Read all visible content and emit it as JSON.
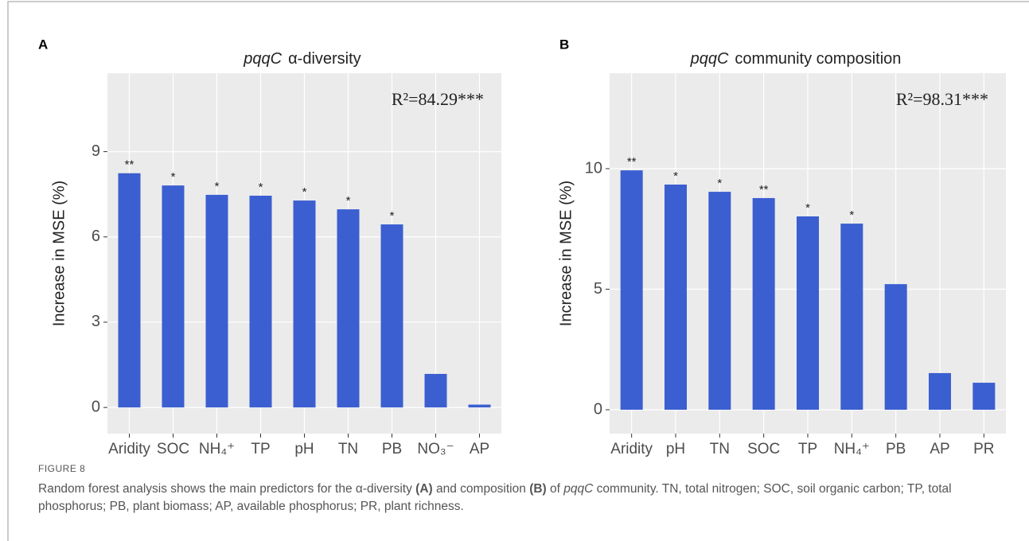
{
  "figure_label": "FIGURE 8",
  "caption": [
    "Random forest analysis shows the main predictors for the α-diversity ",
    "(A)",
    " and composition ",
    "(B)",
    " of ",
    "pqqC",
    " community. TN, total nitrogen; SOC, soil organic carbon; TP, total phosphorus; PB, plant biomass; AP, available phosphorus; PR, plant richness."
  ],
  "chart_data": [
    {
      "type": "bar",
      "panel": "A",
      "title_gene": "pqqC",
      "title": "α-diversity",
      "ylabel": "Increase in MSE (%)",
      "annotation": "R²=84.29***",
      "color": "#3b5fd0",
      "grid": true,
      "categories": [
        "Aridity",
        "SOC",
        "NH₄⁺",
        "TP",
        "pH",
        "TN",
        "PB",
        "NO₃⁻",
        "AP"
      ],
      "values": [
        8.24,
        7.81,
        7.48,
        7.45,
        7.28,
        6.97,
        6.44,
        1.18,
        0.1
      ],
      "significance": [
        "**",
        "*",
        "*",
        "*",
        "*",
        "*",
        "*",
        null,
        null
      ],
      "ylim": [
        -0.92,
        11.76
      ],
      "yticks": [
        0,
        3,
        6,
        9
      ]
    },
    {
      "type": "bar",
      "panel": "B",
      "title_gene": "pqqC",
      "title": "community composition",
      "ylabel": "Increase in MSE (%)",
      "annotation": "R²=98.31***",
      "color": "#3b5fd0",
      "grid": true,
      "categories": [
        "Aridity",
        "pH",
        "TN",
        "SOC",
        "TP",
        "NH₄⁺",
        "PB",
        "AP",
        "PR"
      ],
      "values": [
        9.93,
        9.34,
        9.04,
        8.78,
        8.02,
        7.72,
        5.21,
        1.52,
        1.12
      ],
      "significance": [
        "**",
        "*",
        "*",
        "**",
        "*",
        "*",
        null,
        null,
        null
      ],
      "ylim": [
        -0.99,
        13.96
      ],
      "yticks": [
        0,
        5,
        10
      ]
    }
  ]
}
